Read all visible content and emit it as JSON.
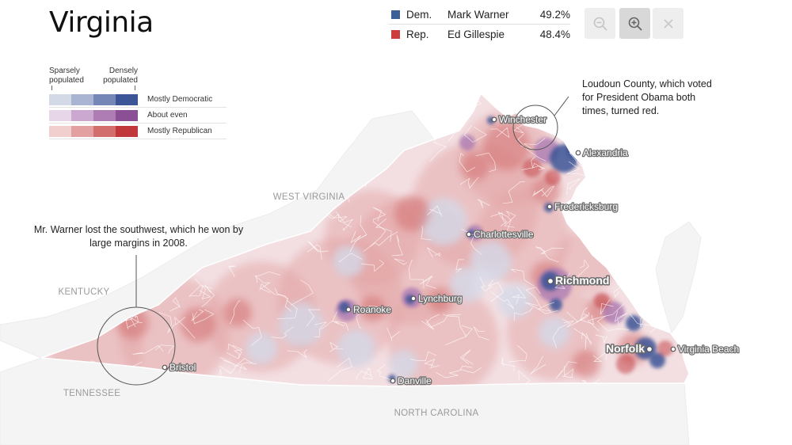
{
  "header": {
    "title": "Virginia"
  },
  "results": [
    {
      "party": "Dem.",
      "candidate": "Mark Warner",
      "pct": "49.2%",
      "color": "#3c5f95"
    },
    {
      "party": "Rep.",
      "candidate": "Ed Gillespie",
      "pct": "48.4%",
      "color": "#cc3d3d"
    }
  ],
  "zoom_controls": {
    "zoom_out_icon": "zoom-out-icon",
    "zoom_in_icon": "zoom-in-icon",
    "close_icon": "close-icon"
  },
  "legend": {
    "left_header": "Sparsely populated",
    "right_header": "Densely populated",
    "rows": [
      {
        "label": "Mostly Democratic",
        "colors": [
          "#d4d9e8",
          "#a8b4d1",
          "#7587b6",
          "#3c5596"
        ]
      },
      {
        "label": "About even",
        "colors": [
          "#e6d6e8",
          "#cba8cf",
          "#ad7db4",
          "#8a4f95"
        ]
      },
      {
        "label": "Mostly Republican",
        "colors": [
          "#f1cfcf",
          "#e2a0a0",
          "#d26e6e",
          "#c0383c"
        ]
      }
    ]
  },
  "map": {
    "state_labels": [
      "WEST VIRGINIA",
      "KENTUCKY",
      "TENNESSEE",
      "NORTH CAROLINA"
    ],
    "cities": [
      {
        "name": "Winchester",
        "major": false
      },
      {
        "name": "Alexandria",
        "major": false
      },
      {
        "name": "Fredericksburg",
        "major": false
      },
      {
        "name": "Charlottesville",
        "major": false
      },
      {
        "name": "Richmond",
        "major": true
      },
      {
        "name": "Lynchburg",
        "major": false
      },
      {
        "name": "Roanoke",
        "major": false
      },
      {
        "name": "Norfolk",
        "major": true
      },
      {
        "name": "Virginia Beach",
        "major": false
      },
      {
        "name": "Bristol",
        "major": false
      },
      {
        "name": "Danville",
        "major": false
      }
    ],
    "annotations": {
      "loudoun": "Loudoun County, which voted for President Obama both times, turned red.",
      "southwest": "Mr. Warner lost the southwest, which he won by large margins in 2008."
    }
  }
}
